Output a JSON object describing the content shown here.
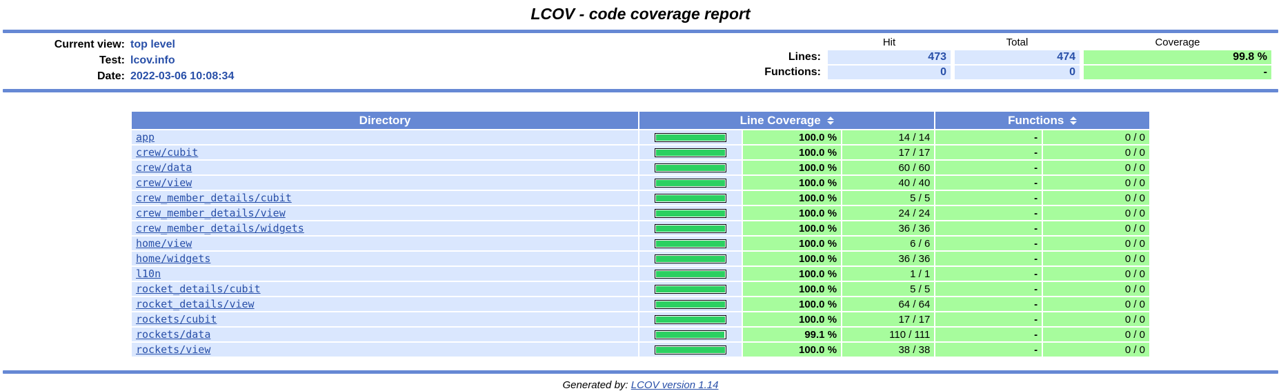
{
  "page": {
    "title": "LCOV - code coverage report",
    "footer": {
      "prefix": "Generated by:",
      "link_label": "LCOV version 1.14"
    }
  },
  "header": {
    "items": [
      {
        "label": "Current view:",
        "value": "top level"
      },
      {
        "label": "Test:",
        "value": "lcov.info"
      },
      {
        "label": "Date:",
        "value": "2022-03-06 10:08:34"
      }
    ],
    "stats": {
      "columns": [
        "Hit",
        "Total",
        "Coverage"
      ],
      "rows": [
        {
          "label": "Lines:",
          "hit": "473",
          "total": "474",
          "coverage": "99.8 %"
        },
        {
          "label": "Functions:",
          "hit": "0",
          "total": "0",
          "coverage": "-"
        }
      ]
    }
  },
  "table": {
    "headers": {
      "directory": "Directory",
      "line_coverage": "Line Coverage",
      "functions": "Functions"
    },
    "rows": [
      {
        "dir": "app",
        "pct": "100.0 %",
        "pct_value": 100,
        "ratio": "14 / 14",
        "fn_pct": "-",
        "fn_ratio": "0 / 0"
      },
      {
        "dir": "crew/cubit",
        "pct": "100.0 %",
        "pct_value": 100,
        "ratio": "17 / 17",
        "fn_pct": "-",
        "fn_ratio": "0 / 0"
      },
      {
        "dir": "crew/data",
        "pct": "100.0 %",
        "pct_value": 100,
        "ratio": "60 / 60",
        "fn_pct": "-",
        "fn_ratio": "0 / 0"
      },
      {
        "dir": "crew/view",
        "pct": "100.0 %",
        "pct_value": 100,
        "ratio": "40 / 40",
        "fn_pct": "-",
        "fn_ratio": "0 / 0"
      },
      {
        "dir": "crew_member_details/cubit",
        "pct": "100.0 %",
        "pct_value": 100,
        "ratio": "5 / 5",
        "fn_pct": "-",
        "fn_ratio": "0 / 0"
      },
      {
        "dir": "crew_member_details/view",
        "pct": "100.0 %",
        "pct_value": 100,
        "ratio": "24 / 24",
        "fn_pct": "-",
        "fn_ratio": "0 / 0"
      },
      {
        "dir": "crew_member_details/widgets",
        "pct": "100.0 %",
        "pct_value": 100,
        "ratio": "36 / 36",
        "fn_pct": "-",
        "fn_ratio": "0 / 0"
      },
      {
        "dir": "home/view",
        "pct": "100.0 %",
        "pct_value": 100,
        "ratio": "6 / 6",
        "fn_pct": "-",
        "fn_ratio": "0 / 0"
      },
      {
        "dir": "home/widgets",
        "pct": "100.0 %",
        "pct_value": 100,
        "ratio": "36 / 36",
        "fn_pct": "-",
        "fn_ratio": "0 / 0"
      },
      {
        "dir": "l10n",
        "pct": "100.0 %",
        "pct_value": 100,
        "ratio": "1 / 1",
        "fn_pct": "-",
        "fn_ratio": "0 / 0"
      },
      {
        "dir": "rocket_details/cubit",
        "pct": "100.0 %",
        "pct_value": 100,
        "ratio": "5 / 5",
        "fn_pct": "-",
        "fn_ratio": "0 / 0"
      },
      {
        "dir": "rocket_details/view",
        "pct": "100.0 %",
        "pct_value": 100,
        "ratio": "64 / 64",
        "fn_pct": "-",
        "fn_ratio": "0 / 0"
      },
      {
        "dir": "rockets/cubit",
        "pct": "100.0 %",
        "pct_value": 100,
        "ratio": "17 / 17",
        "fn_pct": "-",
        "fn_ratio": "0 / 0"
      },
      {
        "dir": "rockets/data",
        "pct": "99.1 %",
        "pct_value": 99.1,
        "ratio": "110 / 111",
        "fn_pct": "-",
        "fn_ratio": "0 / 0"
      },
      {
        "dir": "rockets/view",
        "pct": "100.0 %",
        "pct_value": 100,
        "ratio": "38 / 38",
        "fn_pct": "-",
        "fn_ratio": "0 / 0"
      }
    ]
  },
  "colors": {
    "accent_blue": "#6688d4",
    "value_blue": "#284fa8",
    "row_blue_bg": "#dae7fe",
    "coverage_green_bg": "#a7fc9d",
    "bar_green": "#2bd061"
  }
}
